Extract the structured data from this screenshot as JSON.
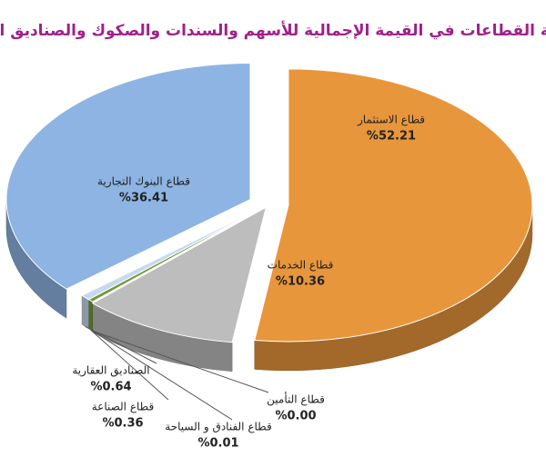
{
  "chart_data": {
    "type": "pie3d",
    "title": "مساهمة القطاعات في القيمة الإجمالية للأسهم والسندات والصكوك والصناديق العقارية",
    "categories": [
      "قطاع الاستثمار",
      "قطاع الخدمات",
      "قطاع التأمين",
      "قطاع الفنادق و السياحة",
      "قطاع الصناعة",
      "الصناديق العقارية",
      "قطاع البنوك التجارية"
    ],
    "values": [
      52.21,
      10.36,
      0,
      0.01,
      0.36,
      0.64,
      36.41
    ],
    "value_labels": [
      "%52.21",
      "%10.36",
      "%0.00",
      "%0.01",
      "%0.36",
      "%0.64",
      "%36.41"
    ],
    "colors": [
      "#e8963c",
      "#bdbdbd",
      "#e6d44a",
      "#9bbb59",
      "#6f9a3a",
      "#c6d9ef",
      "#8db4e2"
    ]
  }
}
